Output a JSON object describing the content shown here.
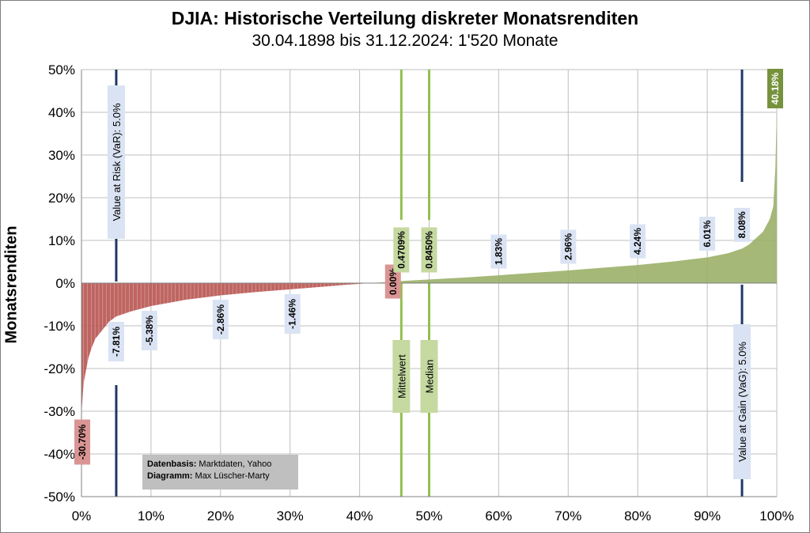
{
  "chart_data": {
    "type": "area",
    "title": "DJIA: Historische Verteilung diskreter Monatsrenditen",
    "subtitle": "30.04.1898 bis 31.12.2024: 1'520 Monate",
    "ylabel": "Monatsrenditen",
    "xlabel": "",
    "xlim": [
      0,
      100
    ],
    "ylim": [
      -50,
      50
    ],
    "x_ticks": [
      "0%",
      "10%",
      "20%",
      "30%",
      "40%",
      "50%",
      "60%",
      "70%",
      "80%",
      "90%",
      "100%"
    ],
    "y_ticks": [
      "50%",
      "40%",
      "30%",
      "20%",
      "10%",
      "0%",
      "-10%",
      "-20%",
      "-30%",
      "-40%",
      "-50%"
    ],
    "grid": true,
    "colors": {
      "negative": "#b85450",
      "positive": "#9bb068",
      "var_line": "#1f3864",
      "mean_line": "#92c050",
      "label_box": "#dae3f3",
      "green_box": "#c5d9a0",
      "red_box": "#d99594"
    },
    "distribution": [
      {
        "x": 0,
        "y": -30.7
      },
      {
        "x": 0.3,
        "y": -23.5
      },
      {
        "x": 0.7,
        "y": -20
      },
      {
        "x": 1,
        "y": -17.5
      },
      {
        "x": 1.5,
        "y": -15
      },
      {
        "x": 2,
        "y": -13
      },
      {
        "x": 3,
        "y": -11
      },
      {
        "x": 4,
        "y": -9
      },
      {
        "x": 5,
        "y": -7.81
      },
      {
        "x": 7,
        "y": -6.7
      },
      {
        "x": 10,
        "y": -5.38
      },
      {
        "x": 15,
        "y": -3.9
      },
      {
        "x": 20,
        "y": -2.86
      },
      {
        "x": 25,
        "y": -2.1
      },
      {
        "x": 30,
        "y": -1.46
      },
      {
        "x": 35,
        "y": -0.8
      },
      {
        "x": 38,
        "y": -0.4
      },
      {
        "x": 41.5,
        "y": 0
      },
      {
        "x": 46,
        "y": 0.4709
      },
      {
        "x": 50,
        "y": 0.845
      },
      {
        "x": 55,
        "y": 1.3
      },
      {
        "x": 60,
        "y": 1.83
      },
      {
        "x": 65,
        "y": 2.4
      },
      {
        "x": 70,
        "y": 2.96
      },
      {
        "x": 75,
        "y": 3.6
      },
      {
        "x": 80,
        "y": 4.24
      },
      {
        "x": 85,
        "y": 5.05
      },
      {
        "x": 90,
        "y": 6.01
      },
      {
        "x": 93,
        "y": 7
      },
      {
        "x": 95,
        "y": 8.08
      },
      {
        "x": 96,
        "y": 9
      },
      {
        "x": 97,
        "y": 10.5
      },
      {
        "x": 98,
        "y": 12
      },
      {
        "x": 99,
        "y": 15
      },
      {
        "x": 99.5,
        "y": 18
      },
      {
        "x": 99.8,
        "y": 27
      },
      {
        "x": 100,
        "y": 40.18
      }
    ],
    "markers": [
      {
        "x": 0,
        "y": -30.7,
        "label": "-30.70%",
        "style": "red"
      },
      {
        "x": 5,
        "y": -7.81,
        "label": "-7.81%",
        "style": "blue"
      },
      {
        "x": 10,
        "y": -5.38,
        "label": "-5.38%",
        "style": "blue"
      },
      {
        "x": 20,
        "y": -2.86,
        "label": "-2.86%",
        "style": "blue"
      },
      {
        "x": 30,
        "y": -1.46,
        "label": "-1.46%",
        "style": "blue"
      },
      {
        "x": 41.5,
        "y": 0,
        "label": "0.00%",
        "style": "red"
      },
      {
        "x": 46,
        "y": 0.4709,
        "label": "0.4709%",
        "style": "green"
      },
      {
        "x": 50,
        "y": 0.845,
        "label": "0.8450%",
        "style": "green"
      },
      {
        "x": 60,
        "y": 1.83,
        "label": "1.83%",
        "style": "blue"
      },
      {
        "x": 70,
        "y": 2.96,
        "label": "2.96%",
        "style": "blue"
      },
      {
        "x": 80,
        "y": 4.24,
        "label": "4.24%",
        "style": "blue"
      },
      {
        "x": 90,
        "y": 6.01,
        "label": "6.01%",
        "style": "blue"
      },
      {
        "x": 95,
        "y": 8.08,
        "label": "8.08%",
        "style": "blue"
      },
      {
        "x": 100,
        "y": 40.18,
        "label": "40.18%",
        "style": "darkgreen"
      }
    ],
    "vlines": [
      {
        "x": 5,
        "label": "Value at Risk (VaR): 5.0%",
        "color": "var"
      },
      {
        "x": 46,
        "label": "Mittelwert",
        "color": "mean"
      },
      {
        "x": 50,
        "label": "Median",
        "color": "mean"
      },
      {
        "x": 95,
        "label": "Value at Gain (VaG): 5.0%",
        "color": "var"
      }
    ]
  },
  "source": {
    "line1_label": "Datenbasis:",
    "line1_value": " Marktdaten, Yahoo",
    "line2_label": "Diagramm:",
    "line2_value": " Max Lüscher-Marty"
  }
}
